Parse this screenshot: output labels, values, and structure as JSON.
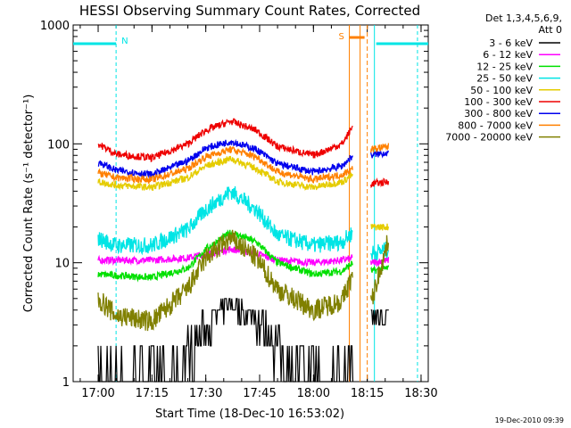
{
  "chart_data": {
    "type": "line",
    "title": "HESSI Observing Summary Count Rates, Corrected",
    "xlabel": "Start Time (18-Dec-10 16:53:02)",
    "ylabel": "Corrected Count Rate (s⁻¹ detector⁻¹)",
    "yscale": "log",
    "ylim": [
      1,
      1000
    ],
    "xlim": [
      "16:53:02",
      "18:32:00"
    ],
    "y_ticks": [
      "1",
      "10",
      "100",
      "1000"
    ],
    "x_ticks": [
      "17:00",
      "17:15",
      "17:30",
      "17:45",
      "18:00",
      "18:15",
      "18:30"
    ],
    "grid": false,
    "legend_position": "top-right",
    "legend_header": [
      "Det 1,3,4,5,6,9,",
      "Att 0"
    ],
    "footer": "19-Dec-2010 09:39",
    "markers": {
      "N": {
        "label": "N",
        "color": "#00e5e5"
      },
      "S": {
        "label": "S",
        "color": "#ff8000"
      }
    },
    "gaps": [
      "18:11",
      "18:16"
    ],
    "series": [
      {
        "name": "3 - 6 keV",
        "color": "#000000",
        "x": [
          "17:00",
          "17:20",
          "17:28",
          "17:33",
          "17:37",
          "17:41",
          "17:46",
          "17:55",
          "18:08",
          "18:11",
          "18:16",
          "18:21"
        ],
        "y": [
          1,
          1,
          2.5,
          3.5,
          4.5,
          4.0,
          3.0,
          1.2,
          1,
          1.6,
          3.5,
          3.6
        ]
      },
      {
        "name": "6 - 12 keV",
        "color": "#ff00ff",
        "x": [
          "17:00",
          "17:15",
          "17:25",
          "17:30",
          "17:37",
          "17:44",
          "17:50",
          "18:00",
          "18:08",
          "18:11",
          "18:16",
          "18:21"
        ],
        "y": [
          10.5,
          10.5,
          11,
          11.8,
          13,
          12,
          10.5,
          10,
          10.5,
          11,
          10,
          10.5
        ]
      },
      {
        "name": "12 - 25 keV",
        "color": "#00e000",
        "x": [
          "17:00",
          "17:15",
          "17:25",
          "17:30",
          "17:37",
          "17:44",
          "17:50",
          "18:00",
          "18:08",
          "18:11",
          "18:16",
          "18:21"
        ],
        "y": [
          8,
          7.5,
          9,
          13,
          18,
          15,
          10,
          8,
          8.5,
          10,
          8.5,
          9
        ]
      },
      {
        "name": "25 - 50 keV",
        "color": "#00e5e5",
        "x": [
          "17:00",
          "17:05",
          "17:15",
          "17:25",
          "17:30",
          "17:37",
          "17:44",
          "17:50",
          "18:00",
          "18:08",
          "18:11",
          "18:16",
          "18:21"
        ],
        "y": [
          16,
          14,
          14,
          19,
          28,
          40,
          28,
          17,
          14,
          15,
          18,
          12,
          13
        ]
      },
      {
        "name": "50 - 100 keV",
        "color": "#e5cc00",
        "x": [
          "17:00",
          "17:05",
          "17:15",
          "17:25",
          "17:30",
          "17:37",
          "17:44",
          "17:50",
          "18:00",
          "18:08",
          "18:11",
          "18:16",
          "18:21"
        ],
        "y": [
          48,
          45,
          43,
          52,
          65,
          75,
          62,
          48,
          43,
          48,
          55,
          20,
          20
        ]
      },
      {
        "name": "100 - 300 keV",
        "color": "#ee0000",
        "x": [
          "17:00",
          "17:05",
          "17:15",
          "17:25",
          "17:30",
          "17:37",
          "17:44",
          "17:50",
          "18:00",
          "18:08",
          "18:11",
          "18:16",
          "18:21"
        ],
        "y": [
          100,
          82,
          76,
          100,
          130,
          155,
          130,
          95,
          80,
          100,
          140,
          46,
          48
        ]
      },
      {
        "name": "300 - 800 keV",
        "color": "#0000ee",
        "x": [
          "17:00",
          "17:05",
          "17:15",
          "17:25",
          "17:30",
          "17:37",
          "17:44",
          "17:50",
          "18:00",
          "18:08",
          "18:11",
          "18:16",
          "18:21"
        ],
        "y": [
          70,
          60,
          55,
          72,
          92,
          105,
          90,
          68,
          58,
          65,
          80,
          80,
          85
        ]
      },
      {
        "name": "800 - 7000 keV",
        "color": "#ff8000",
        "x": [
          "17:00",
          "17:05",
          "17:15",
          "17:25",
          "17:30",
          "17:37",
          "17:44",
          "17:50",
          "18:00",
          "18:08",
          "18:11",
          "18:16",
          "18:21"
        ],
        "y": [
          57,
          52,
          50,
          62,
          78,
          90,
          78,
          58,
          50,
          55,
          62,
          90,
          95
        ]
      },
      {
        "name": "7000 - 20000 keV",
        "color": "#808000",
        "x": [
          "17:00",
          "17:05",
          "17:15",
          "17:25",
          "17:30",
          "17:37",
          "17:44",
          "17:50",
          "18:00",
          "18:08",
          "18:11",
          "18:16",
          "18:21"
        ],
        "y": [
          5,
          3.6,
          3.2,
          6,
          11,
          16,
          11,
          6,
          4,
          4.8,
          8,
          4.5,
          16
        ]
      }
    ]
  }
}
